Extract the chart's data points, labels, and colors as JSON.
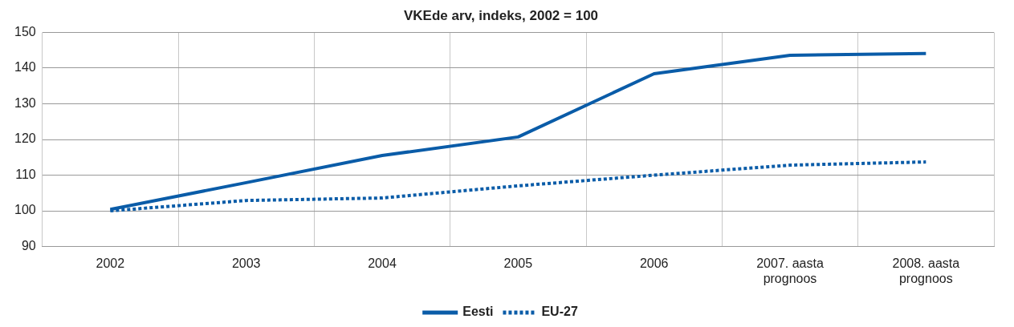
{
  "chart_data": {
    "type": "line",
    "title": "VKEde arv, indeks, 2002 = 100",
    "categories": [
      "2002",
      "2003",
      "2004",
      "2005",
      "2006",
      "2007. aasta prognoos",
      "2008. aasta prognoos"
    ],
    "series": [
      {
        "name": "Eesti",
        "color": "#0a5ca8",
        "line_style": "solid",
        "values": [
          100.4,
          107.9,
          115.5,
          120.7,
          138.4,
          143.6,
          144.1
        ]
      },
      {
        "name": "EU-27",
        "color": "#0a5ca8",
        "line_style": "dotted",
        "values": [
          100,
          102.9,
          103.6,
          107,
          110,
          112.8,
          113.7
        ]
      }
    ],
    "ylim": [
      90,
      150
    ],
    "yticks": [
      90,
      100,
      110,
      120,
      130,
      140,
      150
    ],
    "grid": true,
    "legend": "bottom",
    "marker": "none"
  }
}
